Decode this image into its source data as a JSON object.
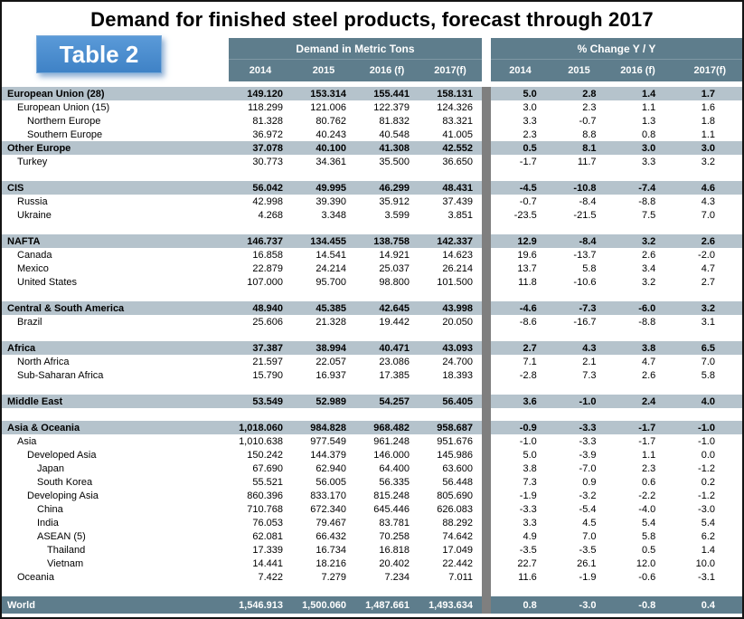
{
  "title": "Demand for finished steel products, forecast through 2017",
  "table_label": "Table 2",
  "colors": {
    "header_band": "#5e7d8c",
    "world_row": "#5e7d8c",
    "section_row": "#b5c3cc",
    "divider": "#7f7f7f",
    "badge_blue": "#3f82c6",
    "badge_blue_light": "#5a9ad8",
    "text": "#000000"
  },
  "chart_data": {
    "type": "table",
    "title": "Demand for finished steel products, forecast through 2017",
    "column_groups": [
      "Demand in Metric Tons",
      "% Change Y / Y"
    ],
    "years": [
      "2014",
      "2015",
      "2016 (f)",
      "2017(f)"
    ],
    "rows": [
      {
        "label": "European Union (28)",
        "kind": "section",
        "indent": 0,
        "tons": [
          "149.120",
          "153.314",
          "155.441",
          "158.131"
        ],
        "pct": [
          "5.0",
          "2.8",
          "1.4",
          "1.7"
        ]
      },
      {
        "label": "European Union (15)",
        "kind": "item",
        "indent": 1,
        "tons": [
          "118.299",
          "121.006",
          "122.379",
          "124.326"
        ],
        "pct": [
          "3.0",
          "2.3",
          "1.1",
          "1.6"
        ]
      },
      {
        "label": "Northern Europe",
        "kind": "item",
        "indent": 2,
        "tons": [
          "81.328",
          "80.762",
          "81.832",
          "83.321"
        ],
        "pct": [
          "3.3",
          "-0.7",
          "1.3",
          "1.8"
        ]
      },
      {
        "label": "Southern Europe",
        "kind": "item",
        "indent": 2,
        "tons": [
          "36.972",
          "40.243",
          "40.548",
          "41.005"
        ],
        "pct": [
          "2.3",
          "8.8",
          "0.8",
          "1.1"
        ]
      },
      {
        "label": "Other Europe",
        "kind": "section",
        "indent": 0,
        "tons": [
          "37.078",
          "40.100",
          "41.308",
          "42.552"
        ],
        "pct": [
          "0.5",
          "8.1",
          "3.0",
          "3.0"
        ]
      },
      {
        "label": "Turkey",
        "kind": "item",
        "indent": 1,
        "tons": [
          "30.773",
          "34.361",
          "35.500",
          "36.650"
        ],
        "pct": [
          "-1.7",
          "11.7",
          "3.3",
          "3.2"
        ]
      },
      {
        "kind": "gap"
      },
      {
        "label": "CIS",
        "kind": "section",
        "indent": 0,
        "tons": [
          "56.042",
          "49.995",
          "46.299",
          "48.431"
        ],
        "pct": [
          "-4.5",
          "-10.8",
          "-7.4",
          "4.6"
        ]
      },
      {
        "label": "Russia",
        "kind": "item",
        "indent": 1,
        "tons": [
          "42.998",
          "39.390",
          "35.912",
          "37.439"
        ],
        "pct": [
          "-0.7",
          "-8.4",
          "-8.8",
          "4.3"
        ]
      },
      {
        "label": "Ukraine",
        "kind": "item",
        "indent": 1,
        "tons": [
          "4.268",
          "3.348",
          "3.599",
          "3.851"
        ],
        "pct": [
          "-23.5",
          "-21.5",
          "7.5",
          "7.0"
        ]
      },
      {
        "kind": "gap"
      },
      {
        "label": "NAFTA",
        "kind": "section",
        "indent": 0,
        "tons": [
          "146.737",
          "134.455",
          "138.758",
          "142.337"
        ],
        "pct": [
          "12.9",
          "-8.4",
          "3.2",
          "2.6"
        ]
      },
      {
        "label": "Canada",
        "kind": "item",
        "indent": 1,
        "tons": [
          "16.858",
          "14.541",
          "14.921",
          "14.623"
        ],
        "pct": [
          "19.6",
          "-13.7",
          "2.6",
          "-2.0"
        ]
      },
      {
        "label": "Mexico",
        "kind": "item",
        "indent": 1,
        "tons": [
          "22.879",
          "24.214",
          "25.037",
          "26.214"
        ],
        "pct": [
          "13.7",
          "5.8",
          "3.4",
          "4.7"
        ]
      },
      {
        "label": "United States",
        "kind": "item",
        "indent": 1,
        "tons": [
          "107.000",
          "95.700",
          "98.800",
          "101.500"
        ],
        "pct": [
          "11.8",
          "-10.6",
          "3.2",
          "2.7"
        ]
      },
      {
        "kind": "gap"
      },
      {
        "label": "Central & South America",
        "kind": "section",
        "indent": 0,
        "tons": [
          "48.940",
          "45.385",
          "42.645",
          "43.998"
        ],
        "pct": [
          "-4.6",
          "-7.3",
          "-6.0",
          "3.2"
        ]
      },
      {
        "label": "Brazil",
        "kind": "item",
        "indent": 1,
        "tons": [
          "25.606",
          "21.328",
          "19.442",
          "20.050"
        ],
        "pct": [
          "-8.6",
          "-16.7",
          "-8.8",
          "3.1"
        ]
      },
      {
        "kind": "gap"
      },
      {
        "label": "Africa",
        "kind": "section",
        "indent": 0,
        "tons": [
          "37.387",
          "38.994",
          "40.471",
          "43.093"
        ],
        "pct": [
          "2.7",
          "4.3",
          "3.8",
          "6.5"
        ]
      },
      {
        "label": "North Africa",
        "kind": "item",
        "indent": 1,
        "tons": [
          "21.597",
          "22.057",
          "23.086",
          "24.700"
        ],
        "pct": [
          "7.1",
          "2.1",
          "4.7",
          "7.0"
        ]
      },
      {
        "label": "Sub-Saharan Africa",
        "kind": "item",
        "indent": 1,
        "tons": [
          "15.790",
          "16.937",
          "17.385",
          "18.393"
        ],
        "pct": [
          "-2.8",
          "7.3",
          "2.6",
          "5.8"
        ]
      },
      {
        "kind": "gap"
      },
      {
        "label": "Middle East",
        "kind": "section",
        "indent": 0,
        "tons": [
          "53.549",
          "52.989",
          "54.257",
          "56.405"
        ],
        "pct": [
          "3.6",
          "-1.0",
          "2.4",
          "4.0"
        ]
      },
      {
        "kind": "gap"
      },
      {
        "label": "Asia & Oceania",
        "kind": "section",
        "indent": 0,
        "tons": [
          "1,018.060",
          "984.828",
          "968.482",
          "958.687"
        ],
        "pct": [
          "-0.9",
          "-3.3",
          "-1.7",
          "-1.0"
        ]
      },
      {
        "label": "Asia",
        "kind": "item",
        "indent": 1,
        "tons": [
          "1,010.638",
          "977.549",
          "961.248",
          "951.676"
        ],
        "pct": [
          "-1.0",
          "-3.3",
          "-1.7",
          "-1.0"
        ]
      },
      {
        "label": "Developed Asia",
        "kind": "item",
        "indent": 2,
        "tons": [
          "150.242",
          "144.379",
          "146.000",
          "145.986"
        ],
        "pct": [
          "5.0",
          "-3.9",
          "1.1",
          "0.0"
        ]
      },
      {
        "label": "Japan",
        "kind": "item",
        "indent": 3,
        "tons": [
          "67.690",
          "62.940",
          "64.400",
          "63.600"
        ],
        "pct": [
          "3.8",
          "-7.0",
          "2.3",
          "-1.2"
        ]
      },
      {
        "label": "South Korea",
        "kind": "item",
        "indent": 3,
        "tons": [
          "55.521",
          "56.005",
          "56.335",
          "56.448"
        ],
        "pct": [
          "7.3",
          "0.9",
          "0.6",
          "0.2"
        ]
      },
      {
        "label": "Developing Asia",
        "kind": "item",
        "indent": 2,
        "tons": [
          "860.396",
          "833.170",
          "815.248",
          "805.690"
        ],
        "pct": [
          "-1.9",
          "-3.2",
          "-2.2",
          "-1.2"
        ]
      },
      {
        "label": "China",
        "kind": "item",
        "indent": 3,
        "tons": [
          "710.768",
          "672.340",
          "645.446",
          "626.083"
        ],
        "pct": [
          "-3.3",
          "-5.4",
          "-4.0",
          "-3.0"
        ]
      },
      {
        "label": "India",
        "kind": "item",
        "indent": 3,
        "tons": [
          "76.053",
          "79.467",
          "83.781",
          "88.292"
        ],
        "pct": [
          "3.3",
          "4.5",
          "5.4",
          "5.4"
        ]
      },
      {
        "label": "ASEAN (5)",
        "kind": "item",
        "indent": 3,
        "tons": [
          "62.081",
          "66.432",
          "70.258",
          "74.642"
        ],
        "pct": [
          "4.9",
          "7.0",
          "5.8",
          "6.2"
        ]
      },
      {
        "label": "Thailand",
        "kind": "item",
        "indent": 4,
        "tons": [
          "17.339",
          "16.734",
          "16.818",
          "17.049"
        ],
        "pct": [
          "-3.5",
          "-3.5",
          "0.5",
          "1.4"
        ]
      },
      {
        "label": "Vietnam",
        "kind": "item",
        "indent": 4,
        "tons": [
          "14.441",
          "18.216",
          "20.402",
          "22.442"
        ],
        "pct": [
          "22.7",
          "26.1",
          "12.0",
          "10.0"
        ]
      },
      {
        "label": "Oceania",
        "kind": "item",
        "indent": 1,
        "tons": [
          "7.422",
          "7.279",
          "7.234",
          "7.011"
        ],
        "pct": [
          "11.6",
          "-1.9",
          "-0.6",
          "-3.1"
        ]
      },
      {
        "kind": "gap"
      },
      {
        "label": "World",
        "kind": "world",
        "indent": 0,
        "tons": [
          "1,546.913",
          "1,500.060",
          "1,487.661",
          "1,493.634"
        ],
        "pct": [
          "0.8",
          "-3.0",
          "-0.8",
          "0.4"
        ]
      }
    ]
  }
}
